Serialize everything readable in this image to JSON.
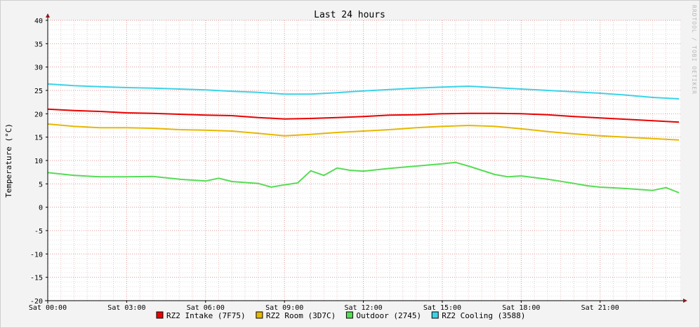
{
  "chart_data": {
    "type": "line",
    "title": "Last 24 hours",
    "ylabel": "Temperature (°C)",
    "xlabel": "",
    "watermark": "RRDTOOL / TOBI OETIKER",
    "ylim": [
      -20,
      40
    ],
    "y_major_ticks": [
      40,
      35,
      30,
      25,
      20,
      15,
      10,
      5,
      0,
      -5,
      -10,
      -15,
      -20
    ],
    "x_range_hours": [
      0,
      24.05
    ],
    "x_tick_hours": [
      0,
      3,
      6,
      9,
      12,
      15,
      18,
      21
    ],
    "x_tick_labels": [
      "Sat 00:00",
      "Sat 03:00",
      "Sat 06:00",
      "Sat 09:00",
      "Sat 12:00",
      "Sat 15:00",
      "Sat 18:00",
      "Sat 21:00"
    ],
    "grid": true,
    "legend_position": "bottom",
    "series": [
      {
        "name": "RZ2 Intake (7F75)",
        "color": "#ea0000",
        "x": [
          0,
          1,
          2,
          3,
          4,
          5,
          6,
          7,
          8,
          9,
          10,
          11,
          12,
          13,
          14,
          15,
          16,
          17,
          18,
          19,
          20,
          21,
          22,
          23,
          24
        ],
        "y": [
          21.0,
          20.7,
          20.5,
          20.2,
          20.1,
          19.9,
          19.7,
          19.6,
          19.2,
          18.9,
          19.0,
          19.2,
          19.4,
          19.7,
          19.8,
          20.0,
          20.1,
          20.1,
          20.0,
          19.8,
          19.4,
          19.1,
          18.8,
          18.5,
          18.2
        ]
      },
      {
        "name": "RZ2 Room (3D7C)",
        "color": "#e6b800",
        "x": [
          0,
          1,
          2,
          3,
          4,
          5,
          6,
          7,
          8,
          9,
          10,
          11,
          12,
          13,
          14,
          15,
          16,
          17,
          18,
          19,
          20,
          21,
          22,
          23,
          24
        ],
        "y": [
          17.8,
          17.3,
          17.0,
          17.0,
          16.9,
          16.6,
          16.5,
          16.3,
          15.8,
          15.3,
          15.6,
          16.0,
          16.3,
          16.6,
          17.0,
          17.3,
          17.5,
          17.3,
          16.8,
          16.2,
          15.7,
          15.3,
          15.0,
          14.7,
          14.4
        ]
      },
      {
        "name": "Outdoor (2745)",
        "color": "#54dd54",
        "x": [
          0,
          1,
          2,
          3,
          4,
          5,
          6,
          6.5,
          7,
          8,
          8.5,
          9,
          9.5,
          10,
          10.5,
          11,
          11.5,
          12,
          13,
          14,
          15,
          15.5,
          16,
          17,
          17.5,
          18,
          19,
          20,
          20.5,
          21,
          22,
          23,
          23.5,
          24
        ],
        "y": [
          7.4,
          6.8,
          6.5,
          6.5,
          6.6,
          6.0,
          5.6,
          6.2,
          5.5,
          5.1,
          4.3,
          4.8,
          5.2,
          7.8,
          6.8,
          8.4,
          7.9,
          7.7,
          8.3,
          8.8,
          9.3,
          9.6,
          8.8,
          7.0,
          6.5,
          6.7,
          6.0,
          5.1,
          4.6,
          4.3,
          4.0,
          3.6,
          4.2,
          3.1
        ]
      },
      {
        "name": "RZ2 Cooling (3588)",
        "color": "#3bd3e8",
        "x": [
          0,
          1,
          2,
          3,
          4,
          5,
          6,
          7,
          8,
          9,
          10,
          11,
          12,
          13,
          14,
          15,
          16,
          17,
          18,
          19,
          20,
          21,
          22,
          23,
          24
        ],
        "y": [
          26.4,
          26.0,
          25.8,
          25.6,
          25.5,
          25.3,
          25.1,
          24.8,
          24.6,
          24.2,
          24.2,
          24.5,
          24.9,
          25.2,
          25.5,
          25.7,
          25.9,
          25.6,
          25.3,
          25.0,
          24.7,
          24.4,
          24.0,
          23.5,
          23.2
        ]
      }
    ]
  }
}
